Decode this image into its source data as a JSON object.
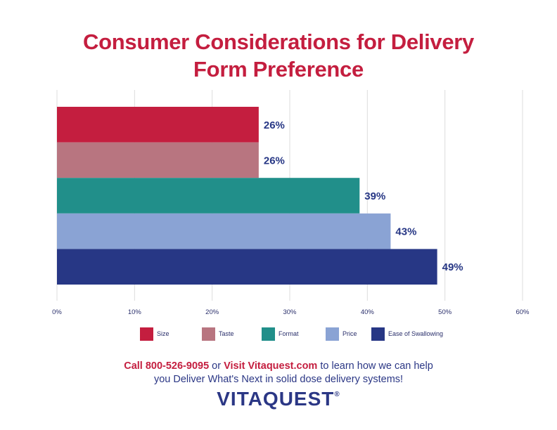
{
  "title_line1": "Consumer Considerations for Delivery",
  "title_line2": "Form Preference",
  "chart_data": {
    "type": "bar",
    "orientation": "horizontal",
    "categories": [
      "Size",
      "Taste",
      "Format",
      "Price",
      "Ease of Swallowing"
    ],
    "values": [
      26,
      26,
      39,
      43,
      49
    ],
    "data_labels": [
      "26%",
      "26%",
      "39%",
      "43%",
      "49%"
    ],
    "colors": [
      "#c41e3f",
      "#b87580",
      "#218f8a",
      "#8aa3d4",
      "#273785"
    ],
    "xlim": [
      0,
      60
    ],
    "xticks": [
      "0%",
      "10%",
      "20%",
      "30%",
      "40%",
      "50%",
      "60%"
    ],
    "grid": "vertical",
    "legend": "bottom"
  },
  "footer": {
    "call": "Call 800-526-9095",
    "or": " or ",
    "visit": "Visit Vitaquest.com",
    "rest1": " to learn how we can help",
    "line2": "you Deliver What's Next in solid dose delivery systems!"
  },
  "logo": {
    "text": "VITAQUEST",
    "mark": "®"
  },
  "colors": {
    "title": "#c41e3f",
    "label": "#273785"
  }
}
